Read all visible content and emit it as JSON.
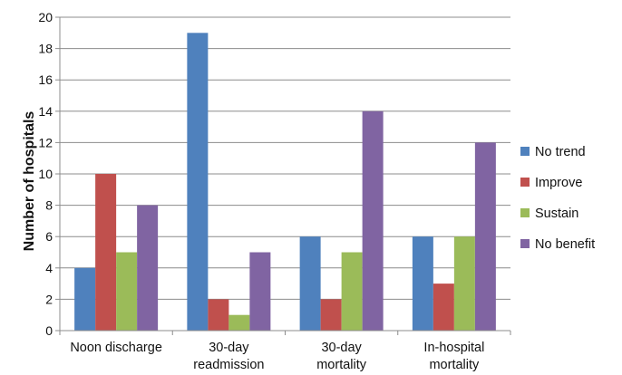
{
  "chart_data": {
    "type": "bar",
    "title": "",
    "xlabel": "",
    "ylabel": "Number of hospitals",
    "ylim": [
      0,
      20
    ],
    "yticks": [
      0,
      2,
      4,
      6,
      8,
      10,
      12,
      14,
      16,
      18,
      20
    ],
    "grid": true,
    "legend_position": "right",
    "categories": [
      [
        "Noon discharge"
      ],
      [
        "30-day",
        "readmission"
      ],
      [
        "30-day",
        "mortality"
      ],
      [
        "In-hospital",
        "mortality"
      ]
    ],
    "series": [
      {
        "name": "No trend",
        "color": "#4f81bd",
        "values": [
          4,
          19,
          6,
          6
        ]
      },
      {
        "name": "Improve",
        "color": "#c0504d",
        "values": [
          10,
          2,
          2,
          3
        ]
      },
      {
        "name": "Sustain",
        "color": "#9bbb59",
        "values": [
          5,
          1,
          5,
          6
        ]
      },
      {
        "name": "No benefit",
        "color": "#8064a2",
        "values": [
          8,
          5,
          14,
          12
        ]
      }
    ]
  }
}
